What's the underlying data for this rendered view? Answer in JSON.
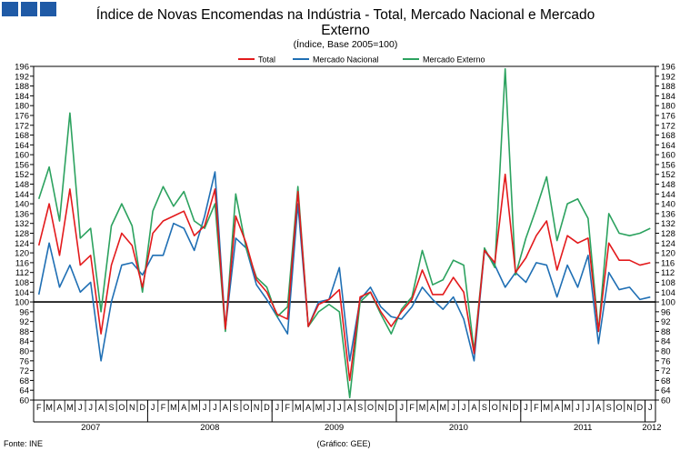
{
  "chart_data": {
    "type": "line",
    "title": "Índice de Novas Encomendas na Indústria - Total, Mercado Nacional e Mercado",
    "title_line2": "Externo",
    "subtitle": "(Índice, Base 2005=100)",
    "source": "Fonte: INE",
    "credit": "(Gráfico: GEE)",
    "xlabel": "",
    "ylabel": "",
    "ylim": [
      60,
      196
    ],
    "yticks": [
      60,
      64,
      68,
      72,
      76,
      80,
      84,
      88,
      92,
      96,
      100,
      104,
      108,
      112,
      116,
      120,
      124,
      128,
      132,
      136,
      140,
      144,
      148,
      152,
      156,
      160,
      164,
      168,
      172,
      176,
      180,
      184,
      188,
      192,
      196
    ],
    "reference_line": 100,
    "grid": false,
    "legend_position": "top-center",
    "month_labels": [
      "F",
      "M",
      "A",
      "M",
      "J",
      "J",
      "A",
      "S",
      "O",
      "N",
      "D",
      "J",
      "F",
      "M",
      "A",
      "M",
      "J",
      "J",
      "A",
      "S",
      "O",
      "N",
      "D",
      "J",
      "F",
      "M",
      "A",
      "M",
      "J",
      "J",
      "A",
      "S",
      "O",
      "N",
      "D",
      "J",
      "F",
      "M",
      "A",
      "M",
      "J",
      "J",
      "A",
      "S",
      "O",
      "N",
      "D",
      "J",
      "F",
      "M",
      "A",
      "M",
      "J",
      "J",
      "A",
      "S",
      "O",
      "N",
      "D",
      "J"
    ],
    "years": [
      {
        "label": "2007",
        "start": 0,
        "end": 11
      },
      {
        "label": "2008",
        "start": 11,
        "end": 23
      },
      {
        "label": "2009",
        "start": 23,
        "end": 35
      },
      {
        "label": "2010",
        "start": 35,
        "end": 47
      },
      {
        "label": "2011",
        "start": 47,
        "end": 59
      },
      {
        "label": "2012",
        "start": 59,
        "end": 60
      }
    ],
    "series": [
      {
        "name": "Total",
        "color": "#e31a1c",
        "values": [
          123,
          140,
          119,
          146,
          115,
          119,
          87,
          115,
          128,
          123,
          106,
          128,
          133,
          135,
          137,
          127,
          131,
          146,
          89,
          135,
          124,
          109,
          104,
          95,
          93,
          145,
          90,
          99,
          101,
          105,
          68,
          102,
          104,
          96,
          90,
          96,
          101,
          113,
          103,
          103,
          110,
          104,
          79,
          121,
          116,
          152,
          112,
          118,
          127,
          133,
          113,
          127,
          124,
          126,
          88,
          124,
          117,
          117,
          115,
          116
        ]
      },
      {
        "name": "Mercado Nacional",
        "color": "#1f6fb4",
        "values": [
          103,
          124,
          106,
          115,
          104,
          108,
          76,
          100,
          115,
          116,
          111,
          119,
          119,
          132,
          130,
          121,
          135,
          153,
          89,
          126,
          122,
          107,
          101,
          94,
          87,
          140,
          90,
          100,
          101,
          114,
          76,
          101,
          106,
          98,
          94,
          93,
          98,
          106,
          101,
          97,
          102,
          93,
          76,
          121,
          115,
          106,
          112,
          108,
          116,
          115,
          102,
          115,
          106,
          119,
          83,
          112,
          105,
          106,
          101,
          102
        ]
      },
      {
        "name": "Mercado Externo",
        "color": "#2ca25f",
        "values": [
          142,
          155,
          133,
          177,
          126,
          130,
          96,
          131,
          140,
          131,
          104,
          137,
          147,
          139,
          145,
          133,
          130,
          140,
          88,
          144,
          122,
          110,
          106,
          94,
          98,
          147,
          90,
          96,
          99,
          96,
          61,
          100,
          104,
          95,
          87,
          97,
          102,
          121,
          107,
          109,
          117,
          115,
          80,
          122,
          114,
          195,
          111,
          126,
          138,
          151,
          125,
          140,
          142,
          134,
          88,
          136,
          128,
          127,
          128,
          130
        ]
      }
    ]
  }
}
